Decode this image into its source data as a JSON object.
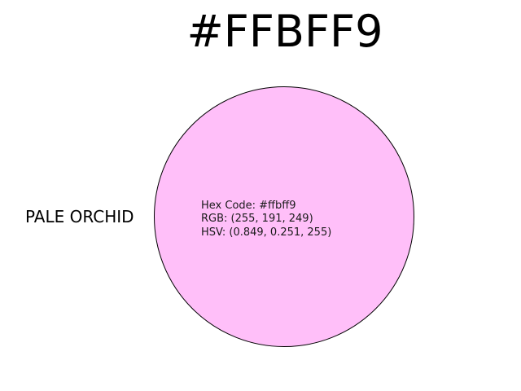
{
  "title": "#FFBFF9",
  "color_name": "PALE ORCHID",
  "swatch_color": "#ffbff9",
  "swatch_border_color": "#000000",
  "info": {
    "hex_line": "Hex Code: #ffbff9",
    "rgb_line": "RGB: (255, 191, 249)",
    "hsv_line": "HSV: (0.849, 0.251, 255)"
  }
}
